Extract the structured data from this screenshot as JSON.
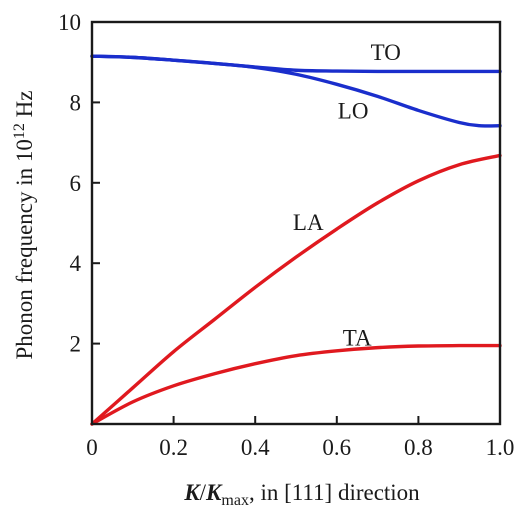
{
  "chart_data": {
    "type": "line",
    "xlabel": {
      "k1": "K",
      "slash": "/",
      "k2": "K",
      "sub": "max",
      "rest": ", in [111] direction"
    },
    "ylabel": {
      "main": "Phonon frequency in 10",
      "sup": "12",
      "unit": " Hz"
    },
    "xlim": [
      0,
      1.0
    ],
    "ylim": [
      0,
      10
    ],
    "xticks": [
      0,
      0.2,
      0.4,
      0.6,
      0.8,
      1.0
    ],
    "xtick_labels": [
      "0",
      "0.2",
      "0.4",
      "0.6",
      "0.8",
      "1.0"
    ],
    "yticks": [
      2,
      4,
      6,
      8,
      10
    ],
    "ytick_labels": [
      "2",
      "4",
      "6",
      "8",
      "10"
    ],
    "grid": false,
    "series": [
      {
        "name": "TO",
        "color": "#1a2ecc",
        "x": [
          0,
          0.1,
          0.2,
          0.3,
          0.4,
          0.5,
          0.6,
          0.7,
          0.8,
          0.9,
          1.0
        ],
        "y": [
          9.15,
          9.12,
          9.05,
          8.97,
          8.88,
          8.8,
          8.78,
          8.77,
          8.77,
          8.77,
          8.77
        ],
        "label_at": [
          0.72,
          9.25
        ]
      },
      {
        "name": "LO",
        "color": "#1a2ecc",
        "x": [
          0,
          0.1,
          0.2,
          0.3,
          0.4,
          0.5,
          0.6,
          0.7,
          0.8,
          0.9,
          0.95,
          1.0
        ],
        "y": [
          9.15,
          9.12,
          9.05,
          8.97,
          8.87,
          8.7,
          8.45,
          8.15,
          7.8,
          7.5,
          7.42,
          7.42
        ],
        "label_at": [
          0.64,
          7.8
        ]
      },
      {
        "name": "LA",
        "color": "#e0191f",
        "x": [
          0,
          0.1,
          0.2,
          0.3,
          0.4,
          0.5,
          0.6,
          0.7,
          0.8,
          0.9,
          1.0
        ],
        "y": [
          0,
          0.9,
          1.8,
          2.6,
          3.4,
          4.15,
          4.85,
          5.5,
          6.05,
          6.45,
          6.68
        ],
        "label_at": [
          0.53,
          5.02
        ]
      },
      {
        "name": "TA",
        "color": "#e0191f",
        "x": [
          0,
          0.1,
          0.2,
          0.3,
          0.4,
          0.5,
          0.6,
          0.7,
          0.8,
          0.9,
          1.0
        ],
        "y": [
          0,
          0.55,
          0.95,
          1.25,
          1.5,
          1.7,
          1.82,
          1.9,
          1.94,
          1.95,
          1.95
        ],
        "label_at": [
          0.65,
          2.15
        ]
      }
    ]
  }
}
